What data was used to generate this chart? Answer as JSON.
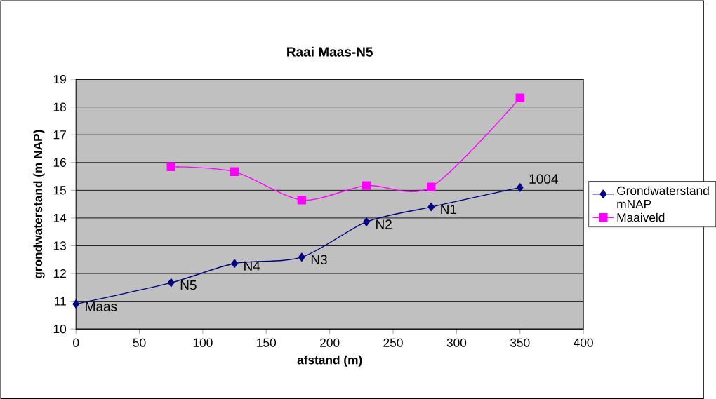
{
  "chart_data": {
    "type": "line",
    "title": "Raai Maas-N5",
    "xlabel": "afstand (m)",
    "ylabel": "grondwaterstand (m NAP)",
    "series": [
      {
        "name": "Grondwaterstand mNAP",
        "color": "#000080",
        "marker": "diamond",
        "x": [
          0,
          75,
          125,
          178,
          229,
          280,
          350
        ],
        "values": [
          10.9,
          11.67,
          12.36,
          12.59,
          13.86,
          14.4,
          15.1
        ]
      },
      {
        "name": "Maaiveld",
        "color": "#ff00ff",
        "marker": "square",
        "x": [
          75,
          125,
          178,
          229,
          280,
          350
        ],
        "values": [
          15.85,
          15.67,
          14.65,
          15.17,
          15.12,
          18.33
        ]
      }
    ],
    "annotations": [
      {
        "text": "Maas",
        "x": 0,
        "y": 10.9
      },
      {
        "text": "N5",
        "x": 75,
        "y": 11.67
      },
      {
        "text": "N4",
        "x": 125,
        "y": 12.36
      },
      {
        "text": "N3",
        "x": 178,
        "y": 12.59
      },
      {
        "text": "N2",
        "x": 229,
        "y": 13.86
      },
      {
        "text": "N1",
        "x": 280,
        "y": 14.4
      },
      {
        "text": "1004",
        "x": 350,
        "y": 15.1
      }
    ],
    "xlim": [
      0,
      400
    ],
    "xticks": [
      0,
      50,
      100,
      150,
      200,
      250,
      300,
      350,
      400
    ],
    "ylim": [
      10,
      19
    ],
    "yticks": [
      10,
      11,
      12,
      13,
      14,
      15,
      16,
      17,
      18,
      19
    ],
    "grid": "y",
    "legend": "right"
  }
}
